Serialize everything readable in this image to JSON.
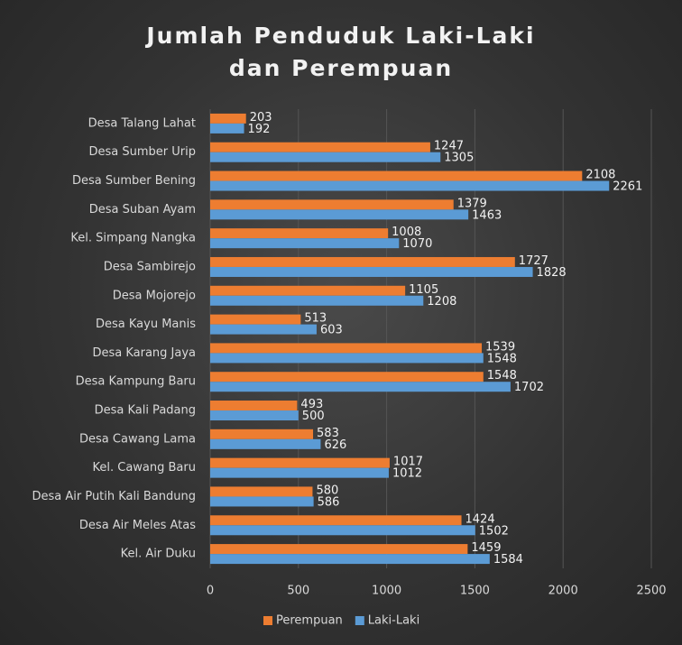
{
  "chart_data": {
    "type": "barh",
    "title": "Jumlah Penduduk Laki-Laki dan Perempuan",
    "categories": [
      "Desa Talang Lahat",
      "Desa Sumber Urip",
      "Desa Sumber Bening",
      "Desa Suban Ayam",
      "Kel. Simpang Nangka",
      "Desa Sambirejo",
      "Desa Mojorejo",
      "Desa Kayu Manis",
      "Desa Karang Jaya",
      "Desa Kampung Baru",
      "Desa Kali Padang",
      "Desa Cawang Lama",
      "Kel. Cawang Baru",
      "Desa Air Putih Kali Bandung",
      "Desa Air Meles Atas",
      "Kel. Air Duku"
    ],
    "series": [
      {
        "name": "Perempuan",
        "color": "#ed7d31",
        "values": [
          203,
          1247,
          2108,
          1379,
          1008,
          1727,
          1105,
          513,
          1539,
          1548,
          493,
          583,
          1017,
          580,
          1424,
          1459
        ]
      },
      {
        "name": "Laki-Laki",
        "color": "#5b9bd5",
        "values": [
          192,
          1305,
          2261,
          1463,
          1070,
          1828,
          1208,
          603,
          1548,
          1702,
          500,
          626,
          1012,
          586,
          1502,
          1584
        ]
      }
    ],
    "xlim": [
      0,
      2500
    ],
    "xticks": [
      0,
      500,
      1000,
      1500,
      2000,
      2500
    ],
    "grid": true,
    "legend": "bottom"
  }
}
